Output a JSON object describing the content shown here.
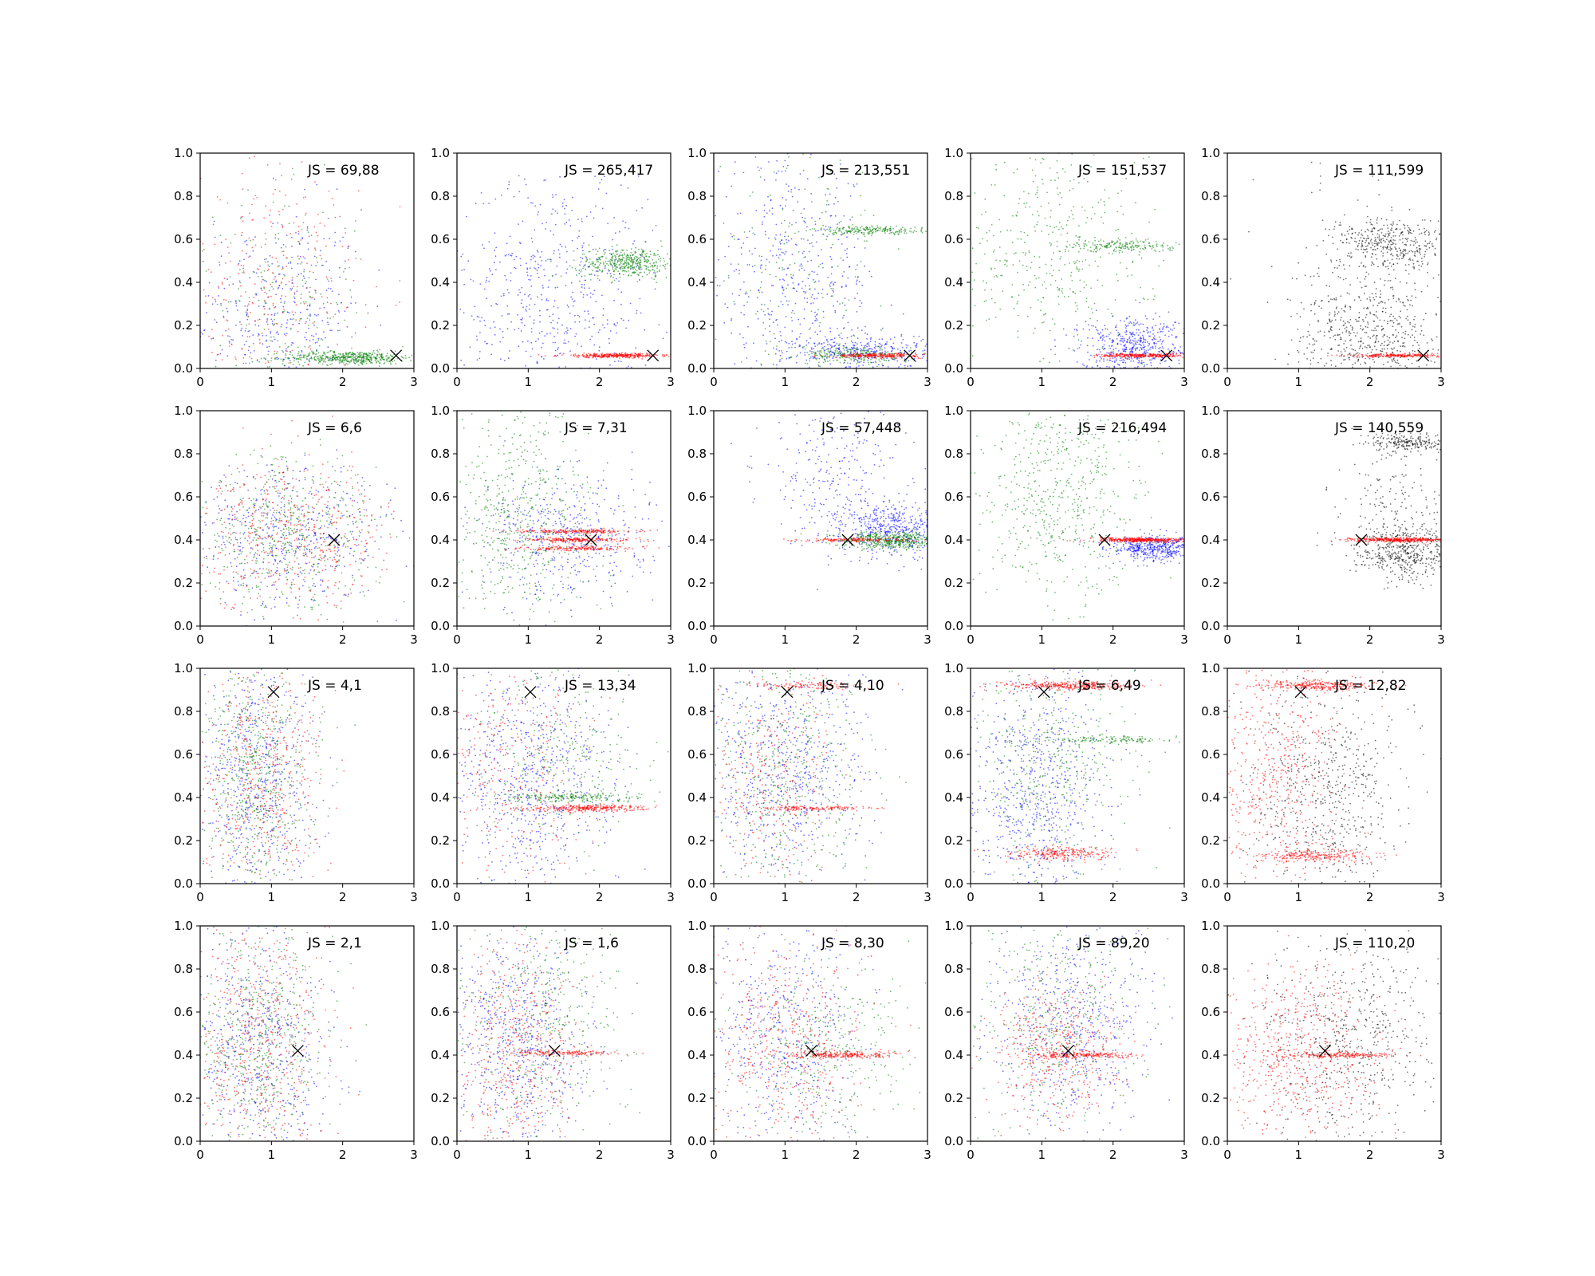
{
  "figure": {
    "background": "#ffffff"
  },
  "chart_data": {
    "type": "scatter",
    "layout": {
      "rows": 4,
      "cols": 5
    },
    "xlim": [
      0,
      3
    ],
    "ylim": [
      0,
      1
    ],
    "xticks": [
      0,
      1,
      2,
      3
    ],
    "yticks": [
      0.0,
      0.2,
      0.4,
      0.6,
      0.8,
      1.0
    ],
    "xtick_labels": [
      "0",
      "1",
      "2",
      "3"
    ],
    "ytick_labels": [
      "0.0",
      "0.2",
      "0.4",
      "0.6",
      "0.8",
      "1.0"
    ],
    "grid": false,
    "legend": "none",
    "point_colors": {
      "blue": "#0000ff",
      "green": "#008000",
      "red": "#ff0000",
      "black": "#000000"
    },
    "marker_color": "#000000",
    "panels": [
      {
        "row": 0,
        "col": 0,
        "annotation": "JS = 69,88",
        "marker": {
          "x": 2.75,
          "y": 0.06
        },
        "clusters": [
          {
            "color": "blue",
            "n": 420,
            "xm": 1.1,
            "xs": 0.6,
            "ym": 0.25,
            "ys": 0.25
          },
          {
            "color": "red",
            "n": 300,
            "xm": 1.0,
            "xs": 0.6,
            "ym": 0.35,
            "ys": 0.3
          },
          {
            "color": "green",
            "n": 500,
            "xm": 2.1,
            "xs": 0.45,
            "ym": 0.05,
            "ys": 0.015
          },
          {
            "color": "green",
            "n": 200,
            "xm": 1.2,
            "xs": 0.5,
            "ym": 0.3,
            "ys": 0.25
          }
        ]
      },
      {
        "row": 0,
        "col": 1,
        "annotation": "JS = 265,417",
        "marker": {
          "x": 2.75,
          "y": 0.06
        },
        "clusters": [
          {
            "color": "blue",
            "n": 600,
            "xm": 1.4,
            "xs": 0.7,
            "ym": 0.35,
            "ys": 0.3
          },
          {
            "color": "green",
            "n": 450,
            "xm": 2.4,
            "xs": 0.35,
            "ym": 0.49,
            "ys": 0.035
          },
          {
            "color": "red",
            "n": 350,
            "xm": 2.25,
            "xs": 0.4,
            "ym": 0.06,
            "ys": 0.005
          }
        ]
      },
      {
        "row": 0,
        "col": 2,
        "annotation": "JS = 213,551",
        "marker": {
          "x": 2.75,
          "y": 0.06
        },
        "clusters": [
          {
            "color": "blue",
            "n": 500,
            "xm": 1.1,
            "xs": 0.6,
            "ym": 0.4,
            "ys": 0.28
          },
          {
            "color": "blue",
            "n": 350,
            "xm": 2.1,
            "xs": 0.5,
            "ym": 0.08,
            "ys": 0.04
          },
          {
            "color": "green",
            "n": 220,
            "xm": 2.2,
            "xs": 0.4,
            "ym": 0.64,
            "ys": 0.01
          },
          {
            "color": "green",
            "n": 250,
            "xm": 2.0,
            "xs": 0.4,
            "ym": 0.06,
            "ys": 0.02
          },
          {
            "color": "green",
            "n": 180,
            "xm": 1.2,
            "xs": 0.6,
            "ym": 0.5,
            "ys": 0.3
          },
          {
            "color": "red",
            "n": 250,
            "xm": 2.3,
            "xs": 0.3,
            "ym": 0.06,
            "ys": 0.005
          }
        ]
      },
      {
        "row": 0,
        "col": 3,
        "annotation": "JS = 151,537",
        "marker": {
          "x": 2.75,
          "y": 0.06
        },
        "clusters": [
          {
            "color": "green",
            "n": 450,
            "xm": 1.1,
            "xs": 0.7,
            "ym": 0.55,
            "ys": 0.3
          },
          {
            "color": "green",
            "n": 200,
            "xm": 2.1,
            "xs": 0.4,
            "ym": 0.57,
            "ys": 0.015
          },
          {
            "color": "blue",
            "n": 550,
            "xm": 2.3,
            "xs": 0.4,
            "ym": 0.1,
            "ys": 0.07
          },
          {
            "color": "red",
            "n": 280,
            "xm": 2.4,
            "xs": 0.3,
            "ym": 0.06,
            "ys": 0.005
          }
        ]
      },
      {
        "row": 0,
        "col": 4,
        "annotation": "JS = 111,599",
        "marker": {
          "x": 2.75,
          "y": 0.06
        },
        "clusters": [
          {
            "color": "black",
            "n": 400,
            "xm": 2.3,
            "xs": 0.4,
            "ym": 0.58,
            "ys": 0.06
          },
          {
            "color": "black",
            "n": 500,
            "xm": 2.0,
            "xs": 0.5,
            "ym": 0.15,
            "ys": 0.12
          },
          {
            "color": "black",
            "n": 150,
            "xm": 2.0,
            "xs": 0.6,
            "ym": 0.4,
            "ys": 0.25
          },
          {
            "color": "red",
            "n": 250,
            "xm": 2.4,
            "xs": 0.35,
            "ym": 0.06,
            "ys": 0.004
          }
        ]
      },
      {
        "row": 1,
        "col": 0,
        "annotation": "JS = 6,6",
        "marker": {
          "x": 1.88,
          "y": 0.4
        },
        "clusters": [
          {
            "color": "blue",
            "n": 500,
            "xm": 1.3,
            "xs": 0.7,
            "ym": 0.42,
            "ys": 0.17
          },
          {
            "color": "green",
            "n": 500,
            "xm": 1.2,
            "xs": 0.65,
            "ym": 0.42,
            "ys": 0.18
          },
          {
            "color": "red",
            "n": 500,
            "xm": 1.3,
            "xs": 0.7,
            "ym": 0.42,
            "ys": 0.17
          }
        ]
      },
      {
        "row": 1,
        "col": 1,
        "annotation": "JS = 7,31",
        "marker": {
          "x": 1.88,
          "y": 0.4
        },
        "clusters": [
          {
            "color": "green",
            "n": 600,
            "xm": 0.9,
            "xs": 0.5,
            "ym": 0.5,
            "ys": 0.28
          },
          {
            "color": "blue",
            "n": 450,
            "xm": 1.6,
            "xs": 0.6,
            "ym": 0.42,
            "ys": 0.15
          },
          {
            "color": "red",
            "n": 220,
            "xm": 1.7,
            "xs": 0.4,
            "ym": 0.44,
            "ys": 0.005
          },
          {
            "color": "red",
            "n": 220,
            "xm": 1.7,
            "xs": 0.4,
            "ym": 0.4,
            "ys": 0.005
          },
          {
            "color": "red",
            "n": 180,
            "xm": 1.7,
            "xs": 0.4,
            "ym": 0.36,
            "ys": 0.005
          }
        ]
      },
      {
        "row": 1,
        "col": 2,
        "annotation": "JS = 57,448",
        "marker": {
          "x": 1.88,
          "y": 0.4
        },
        "clusters": [
          {
            "color": "blue",
            "n": 300,
            "xm": 1.7,
            "xs": 0.5,
            "ym": 0.7,
            "ys": 0.2
          },
          {
            "color": "blue",
            "n": 450,
            "xm": 2.5,
            "xs": 0.35,
            "ym": 0.45,
            "ys": 0.06
          },
          {
            "color": "green",
            "n": 500,
            "xm": 2.5,
            "xs": 0.35,
            "ym": 0.4,
            "ys": 0.02
          },
          {
            "color": "red",
            "n": 150,
            "xm": 2.0,
            "xs": 0.4,
            "ym": 0.4,
            "ys": 0.004
          }
        ]
      },
      {
        "row": 1,
        "col": 3,
        "annotation": "JS = 216,494",
        "marker": {
          "x": 1.88,
          "y": 0.4
        },
        "clusters": [
          {
            "color": "green",
            "n": 650,
            "xm": 1.2,
            "xs": 0.6,
            "ym": 0.6,
            "ys": 0.3
          },
          {
            "color": "blue",
            "n": 450,
            "xm": 2.6,
            "xs": 0.3,
            "ym": 0.36,
            "ys": 0.03
          },
          {
            "color": "red",
            "n": 400,
            "xm": 2.4,
            "xs": 0.35,
            "ym": 0.4,
            "ys": 0.005
          }
        ]
      },
      {
        "row": 1,
        "col": 4,
        "annotation": "JS = 140,559",
        "marker": {
          "x": 1.88,
          "y": 0.4
        },
        "clusters": [
          {
            "color": "black",
            "n": 220,
            "xm": 2.6,
            "xs": 0.3,
            "ym": 0.85,
            "ys": 0.02
          },
          {
            "color": "black",
            "n": 500,
            "xm": 2.5,
            "xs": 0.35,
            "ym": 0.35,
            "ys": 0.06
          },
          {
            "color": "black",
            "n": 150,
            "xm": 2.3,
            "xs": 0.4,
            "ym": 0.6,
            "ys": 0.15
          },
          {
            "color": "red",
            "n": 400,
            "xm": 2.4,
            "xs": 0.35,
            "ym": 0.4,
            "ys": 0.005
          }
        ]
      },
      {
        "row": 2,
        "col": 0,
        "annotation": "JS = 4,1",
        "marker": {
          "x": 1.03,
          "y": 0.89
        },
        "clusters": [
          {
            "color": "blue",
            "n": 600,
            "xm": 0.8,
            "xs": 0.4,
            "ym": 0.5,
            "ys": 0.28
          },
          {
            "color": "green",
            "n": 600,
            "xm": 0.8,
            "xs": 0.4,
            "ym": 0.5,
            "ys": 0.28
          },
          {
            "color": "red",
            "n": 500,
            "xm": 0.85,
            "xs": 0.45,
            "ym": 0.5,
            "ys": 0.28
          }
        ]
      },
      {
        "row": 2,
        "col": 1,
        "annotation": "JS = 13,34",
        "marker": {
          "x": 1.03,
          "y": 0.89
        },
        "clusters": [
          {
            "color": "blue",
            "n": 700,
            "xm": 1.0,
            "xs": 0.6,
            "ym": 0.5,
            "ys": 0.28
          },
          {
            "color": "green",
            "n": 300,
            "xm": 1.4,
            "xs": 0.6,
            "ym": 0.6,
            "ys": 0.25
          },
          {
            "color": "green",
            "n": 200,
            "xm": 1.6,
            "xs": 0.5,
            "ym": 0.4,
            "ys": 0.01
          },
          {
            "color": "red",
            "n": 300,
            "xm": 0.8,
            "xs": 0.5,
            "ym": 0.5,
            "ys": 0.3
          },
          {
            "color": "red",
            "n": 300,
            "xm": 1.8,
            "xs": 0.4,
            "ym": 0.35,
            "ys": 0.008
          }
        ]
      },
      {
        "row": 2,
        "col": 2,
        "annotation": "JS = 4,10",
        "marker": {
          "x": 1.03,
          "y": 0.89
        },
        "clusters": [
          {
            "color": "blue",
            "n": 650,
            "xm": 1.0,
            "xs": 0.55,
            "ym": 0.5,
            "ys": 0.28
          },
          {
            "color": "green",
            "n": 450,
            "xm": 1.0,
            "xs": 0.55,
            "ym": 0.5,
            "ys": 0.28
          },
          {
            "color": "red",
            "n": 300,
            "xm": 0.8,
            "xs": 0.45,
            "ym": 0.5,
            "ys": 0.28
          },
          {
            "color": "red",
            "n": 150,
            "xm": 1.4,
            "xs": 0.4,
            "ym": 0.35,
            "ys": 0.005
          },
          {
            "color": "red",
            "n": 120,
            "xm": 1.3,
            "xs": 0.35,
            "ym": 0.92,
            "ys": 0.008
          }
        ]
      },
      {
        "row": 2,
        "col": 3,
        "annotation": "JS = 6,49",
        "marker": {
          "x": 1.03,
          "y": 0.89
        },
        "clusters": [
          {
            "color": "blue",
            "n": 700,
            "xm": 0.9,
            "xs": 0.5,
            "ym": 0.45,
            "ys": 0.28
          },
          {
            "color": "green",
            "n": 450,
            "xm": 1.1,
            "xs": 0.6,
            "ym": 0.55,
            "ys": 0.28
          },
          {
            "color": "green",
            "n": 120,
            "xm": 2.0,
            "xs": 0.4,
            "ym": 0.67,
            "ys": 0.008
          },
          {
            "color": "red",
            "n": 350,
            "xm": 1.4,
            "xs": 0.4,
            "ym": 0.92,
            "ys": 0.01
          },
          {
            "color": "red",
            "n": 250,
            "xm": 1.3,
            "xs": 0.4,
            "ym": 0.14,
            "ys": 0.015
          }
        ]
      },
      {
        "row": 2,
        "col": 4,
        "annotation": "JS = 12,82",
        "marker": {
          "x": 1.03,
          "y": 0.89
        },
        "clusters": [
          {
            "color": "black",
            "n": 600,
            "xm": 1.4,
            "xs": 0.55,
            "ym": 0.45,
            "ys": 0.25
          },
          {
            "color": "red",
            "n": 550,
            "xm": 0.7,
            "xs": 0.45,
            "ym": 0.5,
            "ys": 0.28
          },
          {
            "color": "red",
            "n": 300,
            "xm": 1.3,
            "xs": 0.4,
            "ym": 0.92,
            "ys": 0.012
          },
          {
            "color": "red",
            "n": 250,
            "xm": 1.2,
            "xs": 0.45,
            "ym": 0.13,
            "ys": 0.015
          }
        ]
      },
      {
        "row": 3,
        "col": 0,
        "annotation": "JS = 2,1",
        "marker": {
          "x": 1.37,
          "y": 0.42
        },
        "clusters": [
          {
            "color": "blue",
            "n": 550,
            "xm": 0.85,
            "xs": 0.45,
            "ym": 0.45,
            "ys": 0.28
          },
          {
            "color": "green",
            "n": 550,
            "xm": 0.8,
            "xs": 0.45,
            "ym": 0.45,
            "ys": 0.28
          },
          {
            "color": "red",
            "n": 550,
            "xm": 0.85,
            "xs": 0.5,
            "ym": 0.45,
            "ys": 0.28
          }
        ]
      },
      {
        "row": 3,
        "col": 1,
        "annotation": "JS = 1,6",
        "marker": {
          "x": 1.37,
          "y": 0.42
        },
        "clusters": [
          {
            "color": "blue",
            "n": 650,
            "xm": 0.9,
            "xs": 0.5,
            "ym": 0.45,
            "ys": 0.28
          },
          {
            "color": "green",
            "n": 400,
            "xm": 1.2,
            "xs": 0.6,
            "ym": 0.55,
            "ys": 0.28
          },
          {
            "color": "red",
            "n": 500,
            "xm": 0.8,
            "xs": 0.45,
            "ym": 0.4,
            "ys": 0.28
          },
          {
            "color": "red",
            "n": 150,
            "xm": 1.5,
            "xs": 0.4,
            "ym": 0.41,
            "ys": 0.006
          }
        ]
      },
      {
        "row": 3,
        "col": 2,
        "annotation": "JS = 8,30",
        "marker": {
          "x": 1.37,
          "y": 0.42
        },
        "clusters": [
          {
            "color": "blue",
            "n": 500,
            "xm": 1.0,
            "xs": 0.55,
            "ym": 0.5,
            "ys": 0.28
          },
          {
            "color": "green",
            "n": 350,
            "xm": 1.6,
            "xs": 0.6,
            "ym": 0.45,
            "ys": 0.2
          },
          {
            "color": "red",
            "n": 450,
            "xm": 1.0,
            "xs": 0.55,
            "ym": 0.45,
            "ys": 0.25
          },
          {
            "color": "red",
            "n": 250,
            "xm": 1.8,
            "xs": 0.4,
            "ym": 0.4,
            "ys": 0.008
          }
        ]
      },
      {
        "row": 3,
        "col": 3,
        "annotation": "JS = 89,20",
        "marker": {
          "x": 1.37,
          "y": 0.42
        },
        "clusters": [
          {
            "color": "blue",
            "n": 600,
            "xm": 1.4,
            "xs": 0.55,
            "ym": 0.55,
            "ys": 0.25
          },
          {
            "color": "green",
            "n": 350,
            "xm": 1.2,
            "xs": 0.55,
            "ym": 0.6,
            "ys": 0.28
          },
          {
            "color": "red",
            "n": 450,
            "xm": 1.2,
            "xs": 0.45,
            "ym": 0.42,
            "ys": 0.15
          },
          {
            "color": "red",
            "n": 200,
            "xm": 1.6,
            "xs": 0.4,
            "ym": 0.4,
            "ys": 0.006
          }
        ]
      },
      {
        "row": 3,
        "col": 4,
        "annotation": "JS = 110,20",
        "marker": {
          "x": 1.37,
          "y": 0.42
        },
        "clusters": [
          {
            "color": "black",
            "n": 600,
            "xm": 1.7,
            "xs": 0.6,
            "ym": 0.5,
            "ys": 0.25
          },
          {
            "color": "red",
            "n": 600,
            "xm": 1.0,
            "xs": 0.55,
            "ym": 0.42,
            "ys": 0.2
          },
          {
            "color": "red",
            "n": 200,
            "xm": 1.6,
            "xs": 0.4,
            "ym": 0.4,
            "ys": 0.006
          }
        ]
      }
    ]
  }
}
